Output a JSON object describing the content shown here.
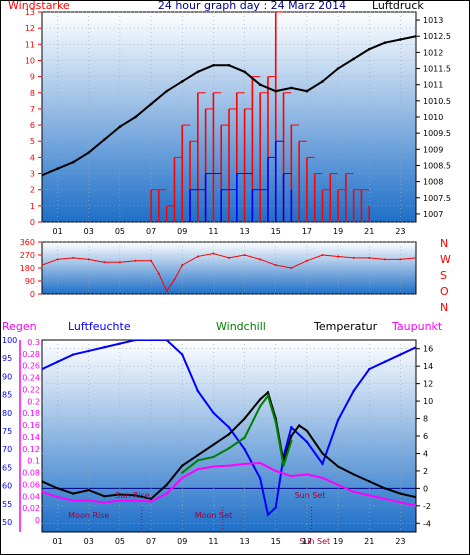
{
  "colors": {
    "wind_speed": "#ff0000",
    "wind_gust_blue": "#0000ff",
    "pressure": "#000000",
    "direction": "#ff0000",
    "humidity": "#0000ff",
    "windchill": "#008000",
    "temperature": "#000000",
    "dewpoint": "#ff00ff",
    "rain_axis": "#ff00ff",
    "bg_top": "#ffffff",
    "bg_bottom": "#1e6fc8"
  },
  "chart_data": [
    {
      "type": "line",
      "title": "24 hour graph day : 24 Marz 2014",
      "left_label": "Windstarke",
      "right_label": "Luftdruck",
      "x_ticks": [
        "01",
        "03",
        "05",
        "07",
        "09",
        "11",
        "13",
        "15",
        "17",
        "19",
        "21",
        "23"
      ],
      "left_ticks": [
        "0",
        "1",
        "2",
        "3",
        "4",
        "5",
        "6",
        "7",
        "8",
        "9",
        "10",
        "11",
        "12",
        "13"
      ],
      "right_ticks": [
        "1007",
        "1007.5",
        "1008",
        "1008.5",
        "1009",
        "1009.5",
        "1010",
        "1010.5",
        "1011",
        "1011.5",
        "1012",
        "1012.5",
        "1013"
      ],
      "ylim_left": [
        0,
        13
      ],
      "ylim_right": [
        1006.75,
        1013.25
      ],
      "series": [
        {
          "name": "Luftdruck",
          "axis": "right",
          "x": [
            0,
            1,
            2,
            3,
            4,
            5,
            6,
            7,
            8,
            9,
            10,
            11,
            12,
            13,
            14,
            15,
            16,
            17,
            18,
            19,
            20,
            21,
            22,
            23,
            24
          ],
          "y": [
            1008.2,
            1008.4,
            1008.6,
            1008.9,
            1009.3,
            1009.7,
            1010.0,
            1010.4,
            1010.8,
            1011.1,
            1011.4,
            1011.6,
            1011.6,
            1011.4,
            1011.0,
            1010.8,
            1010.9,
            1010.8,
            1011.1,
            1011.5,
            1011.8,
            1012.1,
            1012.3,
            1012.4,
            1012.5
          ]
        },
        {
          "name": "Windstarke",
          "axis": "left",
          "x": [
            7.0,
            7.5,
            8.0,
            8.5,
            9.0,
            9.5,
            10.0,
            10.5,
            11.0,
            11.5,
            12.0,
            12.5,
            13.0,
            13.5,
            14.0,
            14.5,
            15.0,
            15.5,
            16.0,
            16.5,
            17.0,
            17.5,
            18.0,
            18.5,
            19.0,
            19.5,
            20.0,
            20.5,
            21.0
          ],
          "y": [
            2,
            2,
            1,
            4,
            6,
            5,
            8,
            7,
            8,
            6,
            7,
            8,
            7,
            9,
            8,
            9,
            13,
            8,
            6,
            5,
            4,
            3,
            2,
            3,
            2,
            3,
            2,
            2,
            1
          ]
        },
        {
          "name": "Boen",
          "axis": "left",
          "x": [
            9.5,
            10.5,
            11.5,
            12.5,
            13.5,
            14.5,
            15.0,
            15.5,
            16.0
          ],
          "y": [
            2,
            3,
            2,
            3,
            2,
            4,
            5,
            3,
            2
          ]
        }
      ]
    },
    {
      "type": "line",
      "left_ticks": [
        "360",
        "270",
        "180",
        "90",
        "0"
      ],
      "ylim": [
        0,
        360
      ],
      "direction_labels": [
        "N",
        "W",
        "S",
        "O",
        "N"
      ],
      "series": [
        {
          "name": "Windrichtung",
          "x": [
            0,
            1,
            2,
            3,
            4,
            5,
            6,
            7,
            7.5,
            8,
            8.5,
            9,
            10,
            11,
            12,
            13,
            14,
            15,
            16,
            17,
            18,
            19,
            20,
            21,
            22,
            23,
            24
          ],
          "y": [
            200,
            240,
            250,
            240,
            220,
            220,
            230,
            230,
            140,
            20,
            100,
            200,
            260,
            280,
            250,
            270,
            240,
            200,
            180,
            230,
            270,
            260,
            250,
            250,
            240,
            240,
            250
          ]
        }
      ]
    },
    {
      "type": "line",
      "left_label_rain": "Regen",
      "left_label_humidity": "Luftfeuchte",
      "windchill_label": "Windchill",
      "temperature_label": "Temperatur",
      "dewpoint_label": "Taupunkt",
      "rain_ticks": [
        "0",
        "0.02",
        "0.04",
        "0.06",
        "0.08",
        "0.1",
        "0.12",
        "0.14",
        "0.16",
        "0.18",
        "0.2",
        "0.22",
        "0.24",
        "0.26",
        "0.28",
        "0.3"
      ],
      "humidity_ticks": [
        "50",
        "55",
        "60",
        "65",
        "70",
        "75",
        "80",
        "85",
        "90",
        "95",
        "100"
      ],
      "temp_ticks": [
        "-4",
        "-2",
        "0",
        "2",
        "4",
        "6",
        "8",
        "10",
        "12",
        "14",
        "16"
      ],
      "ylim_humidity": [
        50,
        100
      ],
      "ylim_temp": [
        -5,
        17
      ],
      "x_ticks": [
        "01",
        "03",
        "05",
        "07",
        "09",
        "11",
        "13",
        "15",
        "17",
        "19",
        "21",
        "23"
      ],
      "annotations": [
        "Moon Rise",
        "Sun Rise",
        "Moon Set",
        "Sun Set",
        "Sun Set"
      ],
      "series": [
        {
          "name": "Luftfeuchte",
          "x": [
            0,
            1,
            2,
            3,
            4,
            5,
            6,
            7,
            8,
            9,
            10,
            11,
            12,
            13,
            14,
            14.5,
            15,
            15.5,
            16,
            17,
            18,
            19,
            20,
            21,
            22,
            23,
            24
          ],
          "y": [
            92,
            94,
            96,
            97,
            98,
            99,
            100,
            100,
            100,
            96,
            86,
            80,
            76,
            70,
            62,
            52,
            54,
            68,
            76,
            72,
            66,
            78,
            86,
            92,
            94,
            96,
            98
          ]
        },
        {
          "name": "Temperatur",
          "x": [
            0,
            1,
            2,
            3,
            4,
            5,
            6,
            7,
            8,
            9,
            10,
            11,
            12,
            13,
            14,
            14.5,
            15,
            15.5,
            16,
            16.5,
            17,
            18,
            19,
            20,
            21,
            22,
            23,
            24
          ],
          "y": [
            0.8,
            0,
            -0.6,
            -0.2,
            -0.9,
            -0.7,
            -0.8,
            -1.2,
            0.4,
            2.6,
            3.8,
            5.0,
            6.2,
            8.0,
            10.2,
            11.0,
            8.0,
            3.0,
            6.0,
            7.2,
            6.6,
            4.0,
            2.5,
            1.6,
            0.8,
            0.0,
            -0.6,
            -1.0
          ]
        },
        {
          "name": "Windchill",
          "x": [
            9,
            10,
            11,
            12,
            13,
            14,
            14.5,
            15,
            15.5,
            16
          ],
          "y": [
            1.8,
            3.2,
            3.6,
            4.6,
            5.8,
            9.4,
            10.6,
            7.6,
            2.6,
            5.4
          ]
        },
        {
          "name": "Taupunkt",
          "x": [
            0,
            1,
            2,
            3,
            4,
            5,
            6,
            7,
            8,
            9,
            10,
            11,
            12,
            13,
            14,
            15,
            16,
            17,
            18,
            19,
            20,
            21,
            22,
            23,
            24
          ],
          "y": [
            -0.4,
            -1.0,
            -1.4,
            -1.4,
            -1.6,
            -1.4,
            -1.4,
            -1.5,
            -0.6,
            1.2,
            2.2,
            2.5,
            2.6,
            2.8,
            2.9,
            2.0,
            1.4,
            1.6,
            1.2,
            0.4,
            -0.4,
            -0.8,
            -1.2,
            -1.6,
            -2.0
          ]
        }
      ]
    }
  ]
}
